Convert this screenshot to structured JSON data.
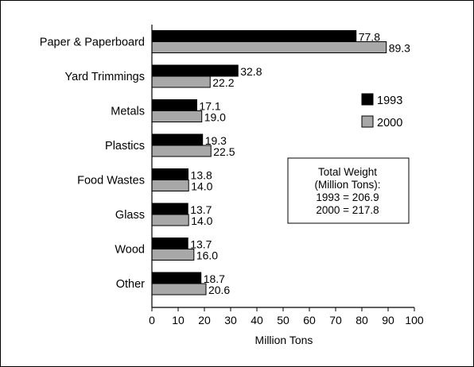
{
  "chart_data": {
    "type": "bar",
    "orientation": "horizontal",
    "title": "",
    "xlabel": "Million Tons",
    "ylabel": "",
    "xlim": [
      0,
      100
    ],
    "x_ticks": [
      0,
      10,
      20,
      30,
      40,
      50,
      60,
      70,
      80,
      90,
      100
    ],
    "grid": false,
    "legend_position": "right",
    "categories": [
      "Paper & Paperboard",
      "Yard Trimmings",
      "Metals",
      "Plastics",
      "Food Wastes",
      "Glass",
      "Wood",
      "Other"
    ],
    "series": [
      {
        "name": "1993",
        "color": "#000000",
        "values": [
          77.8,
          32.8,
          17.1,
          19.3,
          13.8,
          13.7,
          13.7,
          18.7
        ],
        "labels": [
          "77.8",
          "32.8",
          "17.1",
          "19.3",
          "13.8",
          "13.7",
          "13.7",
          "18.7"
        ]
      },
      {
        "name": "2000",
        "color": "#a8a8a8",
        "values": [
          89.3,
          22.2,
          19.0,
          22.5,
          14.0,
          14.0,
          16.0,
          20.6
        ],
        "labels": [
          "89.3",
          "22.2",
          "19.0",
          "22.5",
          "14.0",
          "14.0",
          "16.0",
          "20.6"
        ]
      }
    ],
    "annotation": {
      "lines": [
        "Total Weight",
        "(Million Tons):",
        "1993 = 206.9",
        "2000 = 217.8"
      ]
    }
  }
}
